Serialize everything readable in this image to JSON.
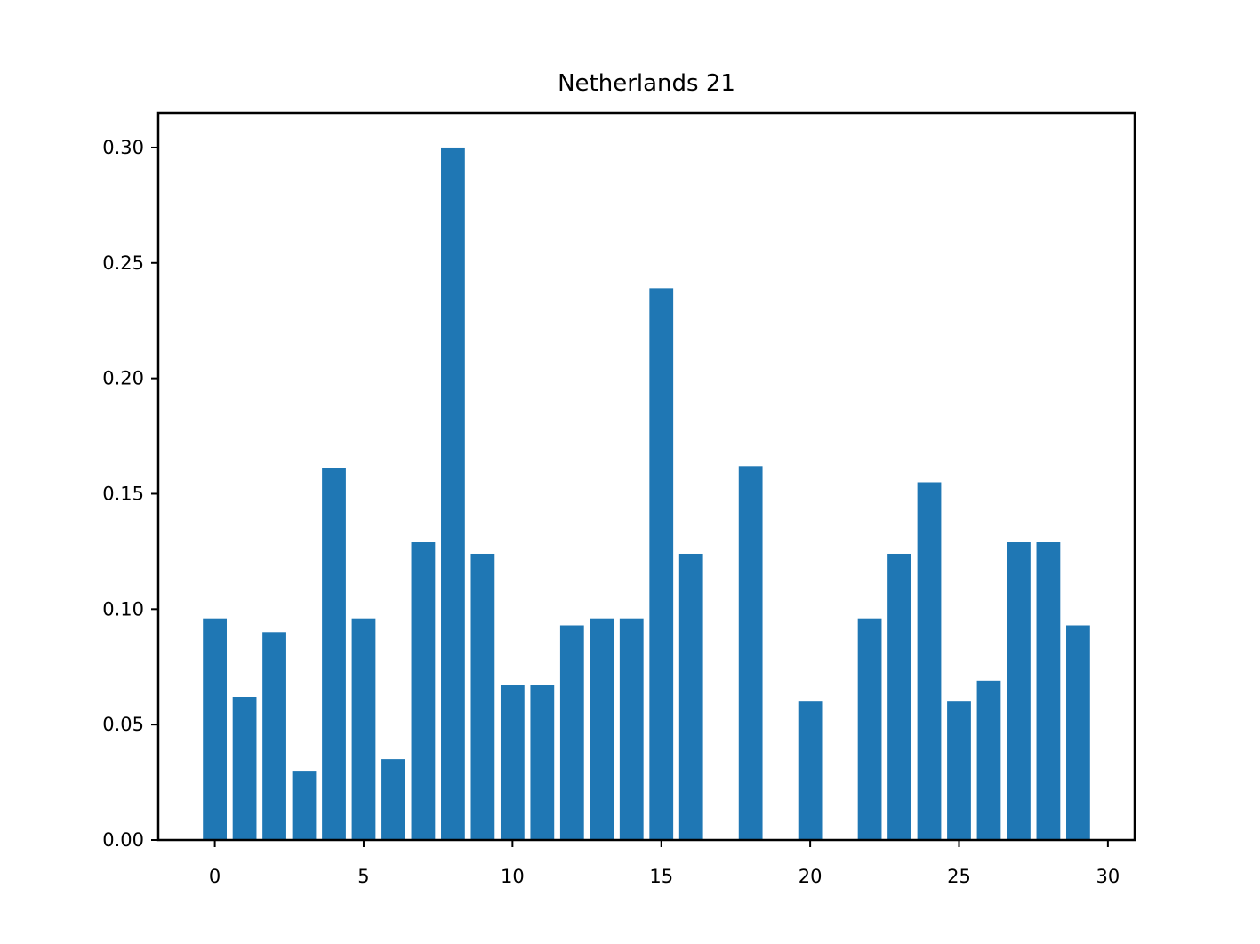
{
  "chart_data": {
    "type": "bar",
    "title": "Netherlands 21",
    "xlabel": "",
    "ylabel": "",
    "x": [
      0,
      1,
      2,
      3,
      4,
      5,
      6,
      7,
      8,
      9,
      10,
      11,
      12,
      13,
      14,
      15,
      16,
      17,
      18,
      19,
      20,
      21,
      22,
      23,
      24,
      25,
      26,
      27,
      28,
      29
    ],
    "values": [
      0.096,
      0.062,
      0.09,
      0.03,
      0.161,
      0.096,
      0.035,
      0.129,
      0.3,
      0.124,
      0.067,
      0.067,
      0.093,
      0.096,
      0.096,
      0.239,
      0.124,
      0,
      0.162,
      0,
      0.06,
      0,
      0.096,
      0.124,
      0.155,
      0.06,
      0.069,
      0.129,
      0.129,
      0.093
    ],
    "xlim": [
      -1.9,
      30.9
    ],
    "ylim": [
      0,
      0.315
    ],
    "xticks": [
      "0",
      "5",
      "10",
      "15",
      "20",
      "25",
      "30"
    ],
    "yticks": [
      "0.00",
      "0.05",
      "0.10",
      "0.15",
      "0.20",
      "0.25",
      "0.30"
    ],
    "grid": false,
    "legend": "none",
    "bar_color": "#1f77b4"
  }
}
